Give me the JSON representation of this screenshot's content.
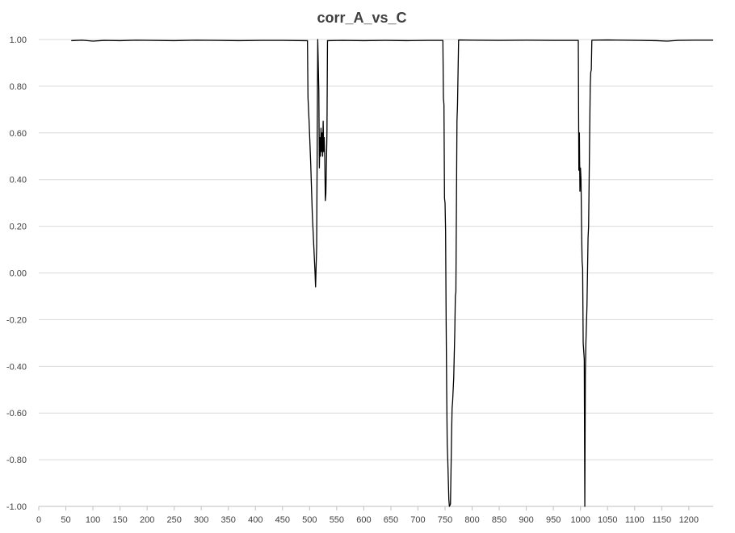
{
  "chart_data": {
    "type": "line",
    "title": "corr_A_vs_C",
    "xlabel": "",
    "ylabel": "",
    "xlim": [
      0,
      1245
    ],
    "ylim": [
      -1.0,
      1.0
    ],
    "x_ticks": [
      0,
      50,
      100,
      150,
      200,
      250,
      300,
      350,
      400,
      450,
      500,
      550,
      600,
      650,
      700,
      750,
      800,
      850,
      900,
      950,
      1000,
      1050,
      1100,
      1150,
      1200
    ],
    "y_ticks": [
      1.0,
      0.8,
      0.6,
      0.4,
      0.2,
      0.0,
      -0.2,
      -0.4,
      -0.6,
      -0.8,
      -1.0
    ],
    "y_tick_labels": [
      "1.00",
      "0.80",
      "0.60",
      "0.40",
      "0.20",
      "0.00",
      "-0.20",
      "-0.40",
      "-0.60",
      "-0.80",
      "-1.00"
    ],
    "grid": true,
    "legend": "none",
    "colors": {
      "line": "#000000",
      "negative_tick": "#c00000",
      "tick": "#404040",
      "grid": "#d9d9d9"
    },
    "series": [
      {
        "points": [
          [
            60,
            0.995
          ],
          [
            80,
            0.997
          ],
          [
            100,
            0.993
          ],
          [
            120,
            0.996
          ],
          [
            150,
            0.995
          ],
          [
            180,
            0.997
          ],
          [
            210,
            0.996
          ],
          [
            250,
            0.995
          ],
          [
            290,
            0.997
          ],
          [
            330,
            0.996
          ],
          [
            370,
            0.995
          ],
          [
            410,
            0.996
          ],
          [
            450,
            0.996
          ],
          [
            490,
            0.995
          ],
          [
            496,
            0.995
          ],
          [
            497,
            0.75
          ],
          [
            499,
            0.65
          ],
          [
            502,
            0.47
          ],
          [
            505,
            0.25
          ],
          [
            508,
            0.1
          ],
          [
            510,
            0.0
          ],
          [
            511,
            -0.06
          ],
          [
            512,
            0.03
          ],
          [
            513,
            0.11
          ],
          [
            515,
            1.0
          ],
          [
            517,
            0.78
          ],
          [
            518,
            0.45
          ],
          [
            519,
            0.58
          ],
          [
            520,
            0.5
          ],
          [
            521,
            0.62
          ],
          [
            522,
            0.52
          ],
          [
            523,
            0.6
          ],
          [
            524,
            0.5
          ],
          [
            525,
            0.65
          ],
          [
            526,
            0.52
          ],
          [
            527,
            0.58
          ],
          [
            528,
            0.49
          ],
          [
            529,
            0.31
          ],
          [
            530,
            0.34
          ],
          [
            532,
            0.6
          ],
          [
            533,
            0.995
          ],
          [
            560,
            0.996
          ],
          [
            600,
            0.995
          ],
          [
            640,
            0.996
          ],
          [
            680,
            0.995
          ],
          [
            720,
            0.996
          ],
          [
            746,
            0.996
          ],
          [
            747,
            0.75
          ],
          [
            748,
            0.72
          ],
          [
            749,
            0.32
          ],
          [
            750,
            0.3
          ],
          [
            751,
            0.18
          ],
          [
            752,
            -0.2
          ],
          [
            753,
            -0.5
          ],
          [
            754,
            -0.73
          ],
          [
            755,
            -0.8
          ],
          [
            757,
            -0.97
          ],
          [
            758,
            -1.0
          ],
          [
            760,
            -0.99
          ],
          [
            761,
            -0.85
          ],
          [
            762,
            -0.7
          ],
          [
            763,
            -0.58
          ],
          [
            764,
            -0.55
          ],
          [
            766,
            -0.45
          ],
          [
            768,
            -0.25
          ],
          [
            769,
            -0.1
          ],
          [
            770,
            -0.08
          ],
          [
            772,
            0.65
          ],
          [
            773,
            0.72
          ],
          [
            775,
            0.998
          ],
          [
            800,
            0.997
          ],
          [
            850,
            0.996
          ],
          [
            900,
            0.997
          ],
          [
            950,
            0.996
          ],
          [
            996,
            0.996
          ],
          [
            997,
            0.44
          ],
          [
            998,
            0.6
          ],
          [
            999,
            0.35
          ],
          [
            1000,
            0.45
          ],
          [
            1001,
            0.4
          ],
          [
            1002,
            0.2
          ],
          [
            1003,
            0.05
          ],
          [
            1004,
            0.02
          ],
          [
            1005,
            -0.3
          ],
          [
            1007,
            -0.37
          ],
          [
            1008,
            -1.0
          ],
          [
            1009,
            -0.43
          ],
          [
            1010,
            -0.3
          ],
          [
            1012,
            -0.14
          ],
          [
            1014,
            0.15
          ],
          [
            1015,
            0.2
          ],
          [
            1016,
            0.4
          ],
          [
            1017,
            0.6
          ],
          [
            1018,
            0.8
          ],
          [
            1019,
            0.86
          ],
          [
            1020,
            0.87
          ],
          [
            1021,
            0.997
          ],
          [
            1050,
            0.998
          ],
          [
            1080,
            0.997
          ],
          [
            1110,
            0.996
          ],
          [
            1140,
            0.995
          ],
          [
            1160,
            0.993
          ],
          [
            1180,
            0.996
          ],
          [
            1210,
            0.997
          ],
          [
            1245,
            0.997
          ]
        ]
      }
    ]
  }
}
